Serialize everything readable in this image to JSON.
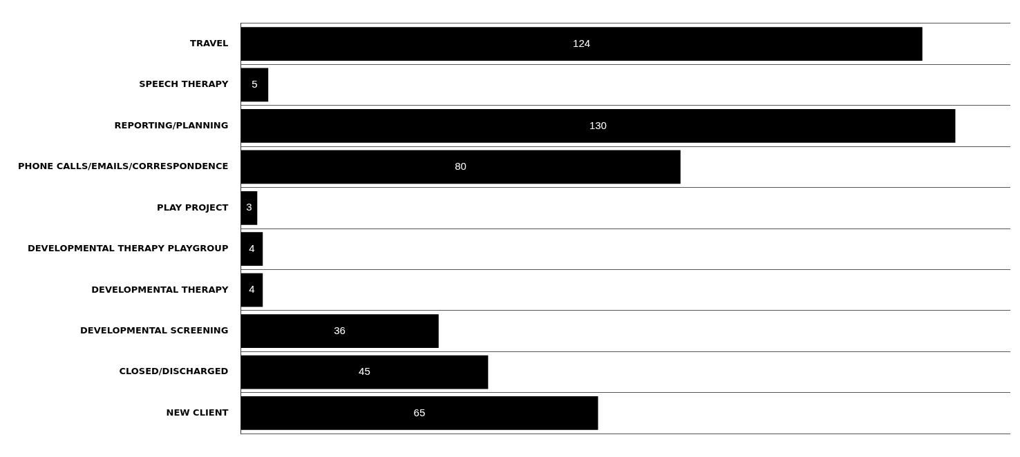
{
  "chart_data": {
    "type": "bar",
    "orientation": "horizontal",
    "categories": [
      "TRAVEL",
      "SPEECH THERAPY",
      "REPORTING/PLANNING",
      "PHONE CALLS/EMAILS/CORRESPONDENCE",
      "PLAY PROJECT",
      "DEVELOPMENTAL THERAPY PLAYGROUP",
      "DEVELOPMENTAL THERAPY",
      "DEVELOPMENTAL SCREENING",
      "CLOSED/DISCHARGED",
      "NEW CLIENT"
    ],
    "values": [
      124,
      5,
      130,
      80,
      3,
      4,
      4,
      36,
      45,
      65
    ],
    "color": "#000000",
    "data_labels": true,
    "grid": "y",
    "legend": false
  }
}
